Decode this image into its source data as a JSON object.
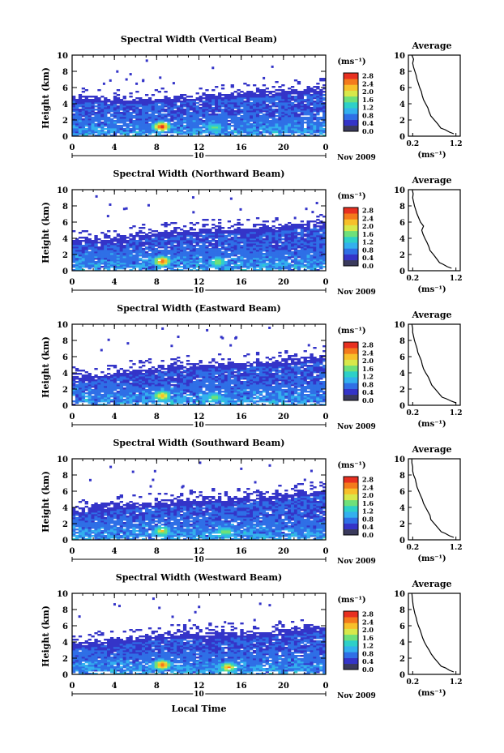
{
  "figure": {
    "x_axis_label": "Local Time",
    "date_label": "Nov 2009",
    "day_label": "10",
    "colorbar_unit": "(ms⁻¹)",
    "colorbar_ticks": [
      "0.0",
      "0.4",
      "0.8",
      "1.2",
      "1.6",
      "2.0",
      "2.4",
      "2.8"
    ],
    "colorbar_colors": [
      "#3a3a5c",
      "#3434c8",
      "#2f6fe6",
      "#33b0ee",
      "#2ed0c8",
      "#6fe07a",
      "#d8e84a",
      "#f7c02a",
      "#f47a1c",
      "#e83020"
    ],
    "accent_bg_color": "#2f47d9"
  },
  "chart_data": [
    {
      "type": "heatmap",
      "title": "Spectral Width (Vertical Beam)",
      "ylabel": "Height (km)",
      "xlim": [
        0,
        24
      ],
      "ylim": [
        0,
        10
      ],
      "x_ticks": [
        "0",
        "4",
        "8",
        "12",
        "16",
        "20",
        "0"
      ],
      "y_ticks": [
        "0",
        "2",
        "4",
        "6",
        "8",
        "10"
      ],
      "echo_top_km": [
        5.0,
        4.6,
        4.8,
        5.2,
        5.6,
        6.0
      ],
      "hotspots": [
        {
          "time": 8.5,
          "height_km": 1.2,
          "value": 2.8
        },
        {
          "time": 13.5,
          "height_km": 1.1,
          "value": 1.4
        }
      ],
      "profile": {
        "title": "Average",
        "xlabel": "(ms⁻¹)",
        "x_ticks": [
          "0.2",
          "1.2"
        ],
        "y_ticks": [
          "0",
          "2",
          "4",
          "6",
          "8",
          "10"
        ],
        "height_km": [
          0.3,
          0.5,
          0.8,
          1.0,
          1.5,
          2.0,
          2.5,
          3.0,
          3.5,
          4.0,
          4.5,
          5.0,
          5.5,
          6.0,
          6.5,
          7.0,
          7.5,
          8.0,
          8.5,
          9.0,
          9.5,
          10.0
        ],
        "width": [
          1.15,
          1.05,
          0.95,
          0.85,
          0.78,
          0.7,
          0.62,
          0.58,
          0.55,
          0.5,
          0.45,
          0.42,
          0.4,
          0.36,
          0.33,
          0.3,
          0.28,
          0.25,
          0.22,
          0.2,
          0.22,
          0.18
        ]
      }
    },
    {
      "type": "heatmap",
      "title": "Spectral Width (Northward Beam)",
      "ylabel": "Height (km)",
      "xlim": [
        0,
        24
      ],
      "ylim": [
        0,
        10
      ],
      "x_ticks": [
        "0",
        "4",
        "8",
        "12",
        "16",
        "20",
        "0"
      ],
      "y_ticks": [
        "0",
        "2",
        "4",
        "6",
        "8",
        "10"
      ],
      "echo_top_km": [
        3.8,
        4.2,
        5.0,
        5.2,
        5.4,
        6.2
      ],
      "hotspots": [
        {
          "time": 8.5,
          "height_km": 1.2,
          "value": 2.6
        },
        {
          "time": 13.8,
          "height_km": 1.1,
          "value": 1.6
        }
      ],
      "profile": {
        "title": "Average",
        "xlabel": "(ms⁻¹)",
        "x_ticks": [
          "0.2",
          "1.2"
        ],
        "y_ticks": [
          "0",
          "2",
          "4",
          "6",
          "8",
          "10"
        ],
        "height_km": [
          0.3,
          0.5,
          0.8,
          1.0,
          1.5,
          2.0,
          2.5,
          3.0,
          3.5,
          4.0,
          4.5,
          5.0,
          5.5,
          6.0,
          6.5,
          7.0,
          7.5,
          8.0,
          8.5,
          9.0,
          9.5,
          10.0
        ],
        "width": [
          1.1,
          1.0,
          0.9,
          0.82,
          0.75,
          0.68,
          0.6,
          0.57,
          0.53,
          0.48,
          0.44,
          0.41,
          0.45,
          0.38,
          0.34,
          0.3,
          0.27,
          0.24,
          0.22,
          0.2,
          0.21,
          0.19
        ]
      }
    },
    {
      "type": "heatmap",
      "title": "Spectral Width (Eastward Beam)",
      "ylabel": "Height (km)",
      "xlim": [
        0,
        24
      ],
      "ylim": [
        0,
        10
      ],
      "x_ticks": [
        "0",
        "4",
        "8",
        "12",
        "16",
        "20",
        "0"
      ],
      "y_ticks": [
        "0",
        "2",
        "4",
        "6",
        "8",
        "10"
      ],
      "echo_top_km": [
        3.6,
        4.2,
        4.9,
        5.2,
        5.4,
        6.2
      ],
      "hotspots": [
        {
          "time": 8.5,
          "height_km": 1.2,
          "value": 2.2
        },
        {
          "time": 13.5,
          "height_km": 1.0,
          "value": 1.4
        }
      ],
      "profile": {
        "title": "Average",
        "xlabel": "(ms⁻¹)",
        "x_ticks": [
          "0.2",
          "1.2"
        ],
        "y_ticks": [
          "0",
          "2",
          "4",
          "6",
          "8",
          "10"
        ],
        "height_km": [
          0.3,
          0.5,
          0.8,
          1.0,
          1.5,
          2.0,
          2.5,
          3.0,
          3.5,
          4.0,
          4.5,
          5.0,
          5.5,
          6.0,
          6.5,
          7.0,
          7.5,
          8.0,
          8.5,
          9.0,
          9.5,
          10.0
        ],
        "width": [
          1.2,
          1.1,
          0.98,
          0.88,
          0.8,
          0.72,
          0.64,
          0.6,
          0.56,
          0.5,
          0.45,
          0.42,
          0.4,
          0.36,
          0.32,
          0.3,
          0.27,
          0.24,
          0.22,
          0.2,
          0.2,
          0.18
        ]
      }
    },
    {
      "type": "heatmap",
      "title": "Spectral Width (Southward Beam)",
      "ylabel": "Height (km)",
      "xlim": [
        0,
        24
      ],
      "ylim": [
        0,
        10
      ],
      "x_ticks": [
        "0",
        "4",
        "8",
        "12",
        "16",
        "20",
        "0"
      ],
      "y_ticks": [
        "0",
        "2",
        "4",
        "6",
        "8",
        "10"
      ],
      "echo_top_km": [
        3.8,
        4.4,
        4.8,
        5.2,
        5.6,
        6.2
      ],
      "hotspots": [
        {
          "time": 8.5,
          "height_km": 1.1,
          "value": 1.8
        },
        {
          "time": 14.5,
          "height_km": 1.0,
          "value": 1.6
        }
      ],
      "profile": {
        "title": "Average",
        "xlabel": "(ms⁻¹)",
        "x_ticks": [
          "0.2",
          "1.2"
        ],
        "y_ticks": [
          "0",
          "2",
          "4",
          "6",
          "8",
          "10"
        ],
        "height_km": [
          0.3,
          0.5,
          0.8,
          1.0,
          1.5,
          2.0,
          2.5,
          3.0,
          3.5,
          4.0,
          4.5,
          5.0,
          5.5,
          6.0,
          6.5,
          7.0,
          7.5,
          8.0,
          8.5,
          9.0,
          9.5,
          10.0
        ],
        "width": [
          1.15,
          1.05,
          0.95,
          0.86,
          0.78,
          0.7,
          0.62,
          0.6,
          0.55,
          0.5,
          0.45,
          0.42,
          0.38,
          0.34,
          0.3,
          0.28,
          0.26,
          0.22,
          0.2,
          0.2,
          0.18,
          0.18
        ]
      }
    },
    {
      "type": "heatmap",
      "title": "Spectral Width (Westward Beam)",
      "ylabel": "Height (km)",
      "xlim": [
        0,
        24
      ],
      "ylim": [
        0,
        10
      ],
      "x_ticks": [
        "0",
        "4",
        "8",
        "12",
        "16",
        "20",
        "0"
      ],
      "y_ticks": [
        "0",
        "2",
        "4",
        "6",
        "8",
        "10"
      ],
      "echo_top_km": [
        3.8,
        4.4,
        5.0,
        5.2,
        5.3,
        6.0
      ],
      "hotspots": [
        {
          "time": 8.5,
          "height_km": 1.2,
          "value": 2.6
        },
        {
          "time": 14.8,
          "height_km": 0.9,
          "value": 2.2
        }
      ],
      "profile": {
        "title": "Average",
        "xlabel": "(ms⁻¹)",
        "x_ticks": [
          "0.2",
          "1.2"
        ],
        "y_ticks": [
          "0",
          "2",
          "4",
          "6",
          "8",
          "10"
        ],
        "height_km": [
          0.3,
          0.5,
          0.8,
          1.0,
          1.5,
          2.0,
          2.5,
          3.0,
          3.5,
          4.0,
          4.5,
          5.0,
          5.5,
          6.0,
          6.5,
          7.0,
          7.5,
          8.0,
          8.5,
          9.0,
          9.5,
          10.0
        ],
        "width": [
          1.15,
          1.05,
          0.96,
          0.86,
          0.78,
          0.7,
          0.63,
          0.58,
          0.52,
          0.47,
          0.43,
          0.4,
          0.37,
          0.33,
          0.3,
          0.28,
          0.25,
          0.23,
          0.21,
          0.2,
          0.19,
          0.18
        ]
      }
    }
  ]
}
